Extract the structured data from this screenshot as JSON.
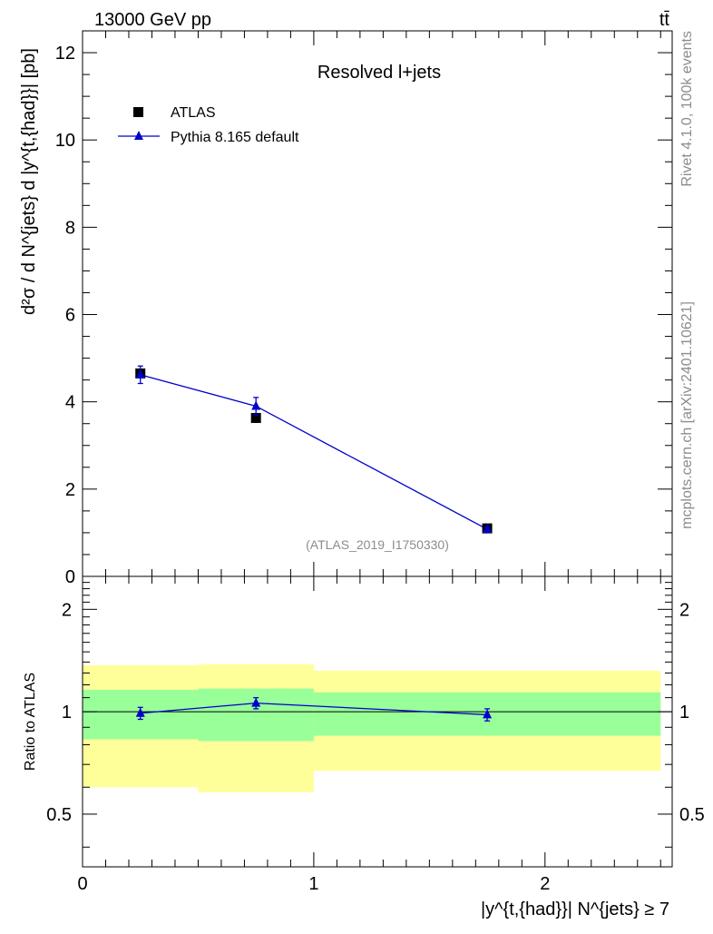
{
  "header": {
    "energy_label": "13000 GeV pp",
    "process_label": "tt̄"
  },
  "side_text": {
    "rivet": "Rivet 4.1.0,  100k events",
    "source": "mcplots.cern.ch [arXiv:2401.10621]"
  },
  "main_plot": {
    "title": "Resolved l+jets",
    "ylabel": "d²σ / d N^{jets} d |y^{t,{had}}| [pb]",
    "ref_label": "(ATLAS_2019_I1750330)",
    "yticks": [
      "0",
      "2",
      "4",
      "6",
      "8",
      "10",
      "12"
    ],
    "ylim": [
      0,
      12.5
    ],
    "legend": {
      "data_label": "ATLAS",
      "mc_label": "Pythia 8.165 default"
    }
  },
  "ratio_plot": {
    "ylabel": "Ratio to ATLAS",
    "yticks": [
      "0.5",
      "1",
      "2"
    ],
    "ylim": [
      0.35,
      2.5
    ]
  },
  "x_axis": {
    "xticks": [
      "0",
      "1",
      "2"
    ],
    "xlim": [
      0,
      2.55
    ],
    "xlabel": "|y^{t,{had}}| N^{jets} ≥ 7"
  },
  "colors": {
    "data": "#000000",
    "mc": "#0000cc",
    "band_inner": "#99ff99",
    "band_outer": "#ffff99"
  },
  "chart_data": {
    "type": "scatter",
    "bins": [
      [
        0,
        0.5
      ],
      [
        0.5,
        1.0
      ],
      [
        1.0,
        2.5
      ]
    ],
    "x": [
      0.25,
      0.75,
      1.75
    ],
    "series": [
      {
        "name": "ATLAS",
        "values": [
          4.65,
          3.63,
          1.1
        ]
      },
      {
        "name": "Pythia 8.165 default",
        "values": [
          4.62,
          3.9,
          1.08
        ],
        "errors": [
          0.2,
          0.2,
          0.05
        ]
      }
    ],
    "ratio": {
      "values": [
        0.99,
        1.06,
        0.98
      ],
      "errors": [
        0.04,
        0.04,
        0.04
      ],
      "band_inner": [
        [
          0.83,
          1.16
        ],
        [
          0.82,
          1.17
        ],
        [
          0.85,
          1.14
        ]
      ],
      "band_outer": [
        [
          0.6,
          1.37
        ],
        [
          0.58,
          1.38
        ],
        [
          0.67,
          1.32
        ]
      ]
    },
    "title": "Resolved l+jets",
    "xlabel": "|y^{t,{had}}| N^{jets} ≥ 7",
    "ylabel": "d²σ / d N^{jets} d |y^{t,{had}}| [pb]"
  }
}
